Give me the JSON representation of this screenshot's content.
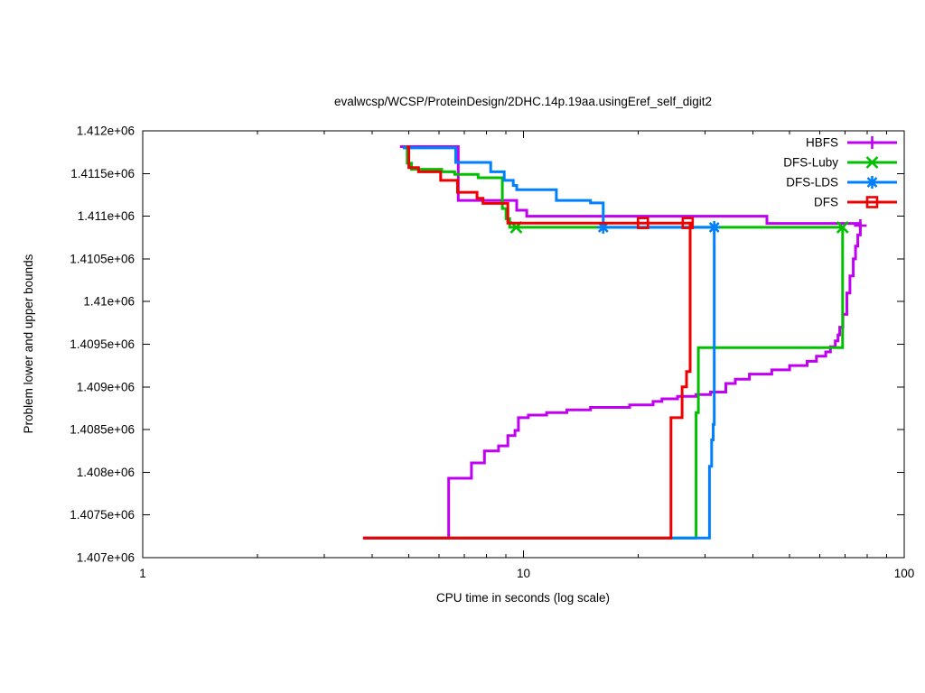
{
  "chart_data": {
    "type": "line",
    "title": "evalwcsp/WCSP/ProteinDesign/2DHC.14p.19aa.usingEref_self_digit2",
    "xlabel": "CPU time in seconds (log scale)",
    "ylabel": "Problem lower and upper bounds",
    "x_scale": "log",
    "x_range": [
      1,
      100
    ],
    "y_range": [
      1407000,
      1412000
    ],
    "grid": false,
    "legend_position": "top-right-inside",
    "x_ticks": [
      {
        "value": 1,
        "label": "1"
      },
      {
        "value": 10,
        "label": "10"
      },
      {
        "value": 100,
        "label": "100"
      }
    ],
    "x_minor_ticks": [
      2,
      3,
      4,
      5,
      6,
      7,
      8,
      9,
      20,
      30,
      40,
      50,
      60,
      70,
      80,
      90
    ],
    "y_ticks": [
      {
        "value": 1407000,
        "label": "1.407e+06"
      },
      {
        "value": 1407500,
        "label": "1.4075e+06"
      },
      {
        "value": 1408000,
        "label": "1.408e+06"
      },
      {
        "value": 1408500,
        "label": "1.4085e+06"
      },
      {
        "value": 1409000,
        "label": "1.409e+06"
      },
      {
        "value": 1409500,
        "label": "1.4095e+06"
      },
      {
        "value": 1410000,
        "label": "1.41e+06"
      },
      {
        "value": 1410500,
        "label": "1.4105e+06"
      },
      {
        "value": 1411000,
        "label": "1.411e+06"
      },
      {
        "value": 1411500,
        "label": "1.4115e+06"
      },
      {
        "value": 1412000,
        "label": "1.412e+06"
      }
    ],
    "series": [
      {
        "name": "HBFS",
        "color": "#c000f0",
        "marker": "plus",
        "upper_bound": [
          [
            4.74,
            1411815
          ],
          [
            6.74,
            1411185
          ],
          [
            9.6,
            1411070
          ],
          [
            10.2,
            1411000
          ],
          [
            43.6,
            1410915
          ],
          [
            76.7,
            1410890
          ]
        ],
        "lower_bound": [
          [
            3.79,
            1407230
          ],
          [
            6.36,
            1407930
          ],
          [
            7.3,
            1408110
          ],
          [
            7.9,
            1408250
          ],
          [
            8.6,
            1408310
          ],
          [
            9.1,
            1408430
          ],
          [
            9.5,
            1408490
          ],
          [
            9.7,
            1408640
          ],
          [
            10.3,
            1408670
          ],
          [
            11.5,
            1408700
          ],
          [
            13,
            1408730
          ],
          [
            15,
            1408760
          ],
          [
            19,
            1408790
          ],
          [
            21.9,
            1408830
          ],
          [
            23.1,
            1408860
          ],
          [
            25.4,
            1408890
          ],
          [
            28.4,
            1408910
          ],
          [
            31,
            1408940
          ],
          [
            34,
            1409040
          ],
          [
            36,
            1409090
          ],
          [
            39.2,
            1409150
          ],
          [
            44.9,
            1409200
          ],
          [
            50,
            1409250
          ],
          [
            55.6,
            1409300
          ],
          [
            58.8,
            1409360
          ],
          [
            62.2,
            1409410
          ],
          [
            64,
            1409470
          ],
          [
            65.9,
            1409540
          ],
          [
            67,
            1409610
          ],
          [
            67.7,
            1409700
          ],
          [
            69,
            1409850
          ],
          [
            70.7,
            1410100
          ],
          [
            72,
            1410300
          ],
          [
            73.5,
            1410500
          ],
          [
            74.5,
            1410650
          ],
          [
            75.5,
            1410780
          ],
          [
            76.7,
            1410890
          ]
        ],
        "marker_points": [
          [
            76.7,
            1410890
          ]
        ]
      },
      {
        "name": "DFS-Luby",
        "color": "#00c000",
        "marker": "cross",
        "upper_bound": [
          [
            4.87,
            1411810
          ],
          [
            4.95,
            1411620
          ],
          [
            5.08,
            1411550
          ],
          [
            6.1,
            1411520
          ],
          [
            6.6,
            1411490
          ],
          [
            7.6,
            1411450
          ],
          [
            8.8,
            1411090
          ],
          [
            9.0,
            1410970
          ],
          [
            9.2,
            1410870
          ],
          [
            68.9,
            1410870
          ]
        ],
        "lower_bound": [
          [
            3.79,
            1407230
          ],
          [
            28.4,
            1408700
          ],
          [
            28.8,
            1409460
          ],
          [
            68.9,
            1410870
          ]
        ],
        "marker_points": [
          [
            9.57,
            1410870
          ],
          [
            68.9,
            1410870
          ]
        ]
      },
      {
        "name": "DFS-LDS",
        "color": "#0080ff",
        "marker": "star",
        "upper_bound": [
          [
            4.82,
            1411800
          ],
          [
            6.64,
            1411630
          ],
          [
            8.2,
            1411520
          ],
          [
            8.9,
            1411420
          ],
          [
            9.4,
            1411360
          ],
          [
            9.6,
            1411310
          ],
          [
            12.2,
            1411185
          ],
          [
            15,
            1411155
          ],
          [
            16.2,
            1410870
          ],
          [
            31.7,
            1410870
          ]
        ],
        "lower_bound": [
          [
            3.79,
            1407230
          ],
          [
            30.8,
            1408070
          ],
          [
            31.2,
            1408380
          ],
          [
            31.5,
            1408560
          ],
          [
            31.7,
            1410870
          ]
        ],
        "marker_points": [
          [
            16.2,
            1410870
          ],
          [
            31.7,
            1410870
          ]
        ]
      },
      {
        "name": "DFS",
        "color": "#ee0000",
        "marker": "square-open",
        "upper_bound": [
          [
            4.93,
            1411810
          ],
          [
            5.0,
            1411570
          ],
          [
            5.3,
            1411520
          ],
          [
            6.06,
            1411420
          ],
          [
            6.71,
            1411280
          ],
          [
            7.55,
            1411210
          ],
          [
            7.83,
            1411150
          ],
          [
            9.1,
            1410920
          ],
          [
            27.8,
            1410920
          ]
        ],
        "lower_bound": [
          [
            3.79,
            1407230
          ],
          [
            24.4,
            1408640
          ],
          [
            26.1,
            1409000
          ],
          [
            26.8,
            1409180
          ],
          [
            27.4,
            1410920
          ],
          [
            27.8,
            1410920
          ]
        ],
        "marker_points": [
          [
            20.6,
            1410920
          ],
          [
            27,
            1410920
          ]
        ]
      }
    ]
  }
}
